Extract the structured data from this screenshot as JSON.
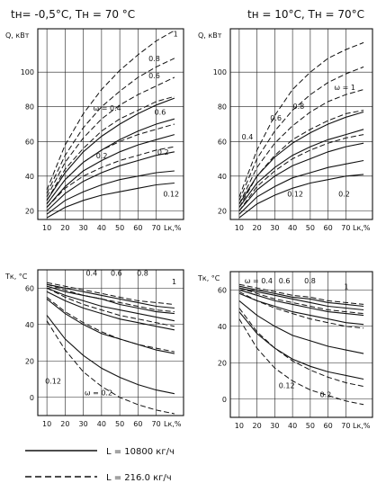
{
  "header": {
    "left": "tн= -0,5°C, Tн = 70 °C",
    "right": "tн = 10°C,    Tн = 70°C"
  },
  "legend": {
    "items": [
      {
        "label": "L = 10800 кг/ч",
        "style": "solid"
      },
      {
        "label": "L = 216.0 кг/ч",
        "style": "dashed"
      }
    ]
  },
  "chart_data": [
    {
      "type": "line",
      "ylabel": "Q, кВт",
      "xlabel": "Lк,%",
      "xticks": [
        10,
        20,
        30,
        40,
        50,
        60,
        70
      ],
      "xtick_labels": [
        "10",
        "20",
        "30",
        "40",
        "50",
        "60",
        "70"
      ],
      "yticks": [
        20,
        40,
        60,
        80,
        100
      ],
      "ytick_labels": [
        "20",
        "40",
        "60",
        "80",
        "100"
      ],
      "xlim": [
        5,
        85
      ],
      "ylim": [
        15,
        125
      ],
      "annotations": [
        "1",
        "0.8",
        "0.6",
        "ω = 0.4",
        "0.6",
        "0.2",
        "0.2",
        "0.12"
      ],
      "series": [
        {
          "style": "dashed",
          "x": [
            10,
            20,
            30,
            40,
            50,
            60,
            70,
            80
          ],
          "y": [
            32,
            58,
            76,
            90,
            101,
            110,
            118,
            124
          ]
        },
        {
          "style": "dashed",
          "x": [
            10,
            20,
            30,
            40,
            50,
            60,
            70,
            80
          ],
          "y": [
            30,
            52,
            68,
            80,
            89,
            97,
            103,
            108
          ]
        },
        {
          "style": "dashed",
          "x": [
            10,
            20,
            30,
            40,
            50,
            60,
            70,
            80
          ],
          "y": [
            28,
            48,
            62,
            73,
            81,
            87,
            92,
            97
          ]
        },
        {
          "style": "dashed",
          "x": [
            10,
            20,
            30,
            40,
            50,
            60,
            70,
            80
          ],
          "y": [
            26,
            44,
            56,
            66,
            73,
            78,
            83,
            86
          ]
        },
        {
          "style": "dashed",
          "x": [
            10,
            20,
            30,
            40,
            50,
            60,
            70,
            80
          ],
          "y": [
            24,
            38,
            48,
            55,
            60,
            64,
            67,
            70
          ]
        },
        {
          "style": "dashed",
          "x": [
            10,
            20,
            30,
            40,
            50,
            60,
            70,
            80
          ],
          "y": [
            22,
            33,
            40,
            45,
            49,
            52,
            55,
            57
          ]
        },
        {
          "style": "solid",
          "x": [
            10,
            20,
            30,
            40,
            50,
            60,
            70,
            80
          ],
          "y": [
            26,
            42,
            54,
            63,
            70,
            76,
            81,
            85
          ]
        },
        {
          "style": "solid",
          "x": [
            10,
            20,
            30,
            40,
            50,
            60,
            70,
            80
          ],
          "y": [
            24,
            38,
            48,
            55,
            61,
            66,
            70,
            73
          ]
        },
        {
          "style": "solid",
          "x": [
            10,
            20,
            30,
            40,
            50,
            60,
            70,
            80
          ],
          "y": [
            22,
            34,
            43,
            49,
            54,
            58,
            61,
            64
          ]
        },
        {
          "style": "solid",
          "x": [
            10,
            20,
            30,
            40,
            50,
            60,
            70,
            80
          ],
          "y": [
            20,
            30,
            37,
            42,
            46,
            49,
            52,
            54
          ]
        },
        {
          "style": "solid",
          "x": [
            10,
            20,
            30,
            40,
            50,
            60,
            70,
            80
          ],
          "y": [
            18,
            26,
            31,
            35,
            38,
            40,
            42,
            43
          ]
        },
        {
          "style": "solid",
          "x": [
            10,
            20,
            30,
            40,
            50,
            60,
            70,
            80
          ],
          "y": [
            16,
            22,
            26,
            29,
            31,
            33,
            35,
            36
          ]
        }
      ]
    },
    {
      "type": "line",
      "ylabel": "Q, кВт",
      "xlabel": "Lк,%",
      "xticks": [
        10,
        20,
        30,
        40,
        50,
        60,
        70
      ],
      "xtick_labels": [
        "10",
        "20",
        "30",
        "40",
        "50",
        "60",
        "70"
      ],
      "yticks": [
        20,
        40,
        60,
        80,
        100
      ],
      "ytick_labels": [
        "20",
        "40",
        "60",
        "80",
        "100"
      ],
      "xlim": [
        5,
        85
      ],
      "ylim": [
        15,
        125
      ],
      "annotations": [
        "ω = 1",
        "0.8",
        "0.6",
        "0.4",
        "0.12",
        "0.2"
      ],
      "series": [
        {
          "style": "dashed",
          "x": [
            10,
            20,
            30,
            40,
            50,
            60,
            70,
            80
          ],
          "y": [
            28,
            55,
            75,
            90,
            100,
            108,
            113,
            117
          ]
        },
        {
          "style": "dashed",
          "x": [
            10,
            20,
            30,
            40,
            50,
            60,
            70,
            80
          ],
          "y": [
            26,
            50,
            66,
            78,
            87,
            94,
            99,
            103
          ]
        },
        {
          "style": "dashed",
          "x": [
            10,
            20,
            30,
            40,
            50,
            60,
            70,
            80
          ],
          "y": [
            24,
            45,
            59,
            69,
            77,
            83,
            87,
            90
          ]
        },
        {
          "style": "dashed",
          "x": [
            10,
            20,
            30,
            40,
            50,
            60,
            70,
            80
          ],
          "y": [
            22,
            40,
            52,
            61,
            67,
            72,
            76,
            78
          ]
        },
        {
          "style": "dashed",
          "x": [
            10,
            20,
            30,
            40,
            50,
            60,
            70,
            80
          ],
          "y": [
            20,
            34,
            43,
            50,
            55,
            59,
            62,
            64
          ]
        },
        {
          "style": "solid",
          "x": [
            10,
            20,
            30,
            40,
            50,
            60,
            70,
            80
          ],
          "y": [
            24,
            40,
            51,
            59,
            65,
            70,
            74,
            77
          ]
        },
        {
          "style": "solid",
          "x": [
            10,
            20,
            30,
            40,
            50,
            60,
            70,
            80
          ],
          "y": [
            22,
            36,
            45,
            52,
            57,
            61,
            64,
            67
          ]
        },
        {
          "style": "solid",
          "x": [
            10,
            20,
            30,
            40,
            50,
            60,
            70,
            80
          ],
          "y": [
            20,
            32,
            40,
            46,
            50,
            54,
            57,
            59
          ]
        },
        {
          "style": "solid",
          "x": [
            10,
            20,
            30,
            40,
            50,
            60,
            70,
            80
          ],
          "y": [
            18,
            28,
            34,
            39,
            42,
            45,
            47,
            49
          ]
        },
        {
          "style": "solid",
          "x": [
            10,
            20,
            30,
            40,
            50,
            60,
            70,
            80
          ],
          "y": [
            16,
            24,
            29,
            33,
            36,
            38,
            40,
            41
          ]
        }
      ]
    },
    {
      "type": "line",
      "ylabel": "Tк, °C",
      "xlabel": "Lк,%",
      "xticks": [
        10,
        20,
        30,
        40,
        50,
        60,
        70
      ],
      "xtick_labels": [
        "10",
        "20",
        "30",
        "40",
        "50",
        "60",
        "70"
      ],
      "yticks": [
        0,
        20,
        40,
        60
      ],
      "ytick_labels": [
        "0",
        "20",
        "40",
        "60"
      ],
      "xlim": [
        5,
        85
      ],
      "ylim": [
        -10,
        70
      ],
      "annotations": [
        "0.4",
        "0.6",
        "0.8",
        "1",
        "0.12",
        "ω = 0.2"
      ],
      "series": [
        {
          "style": "solid",
          "x": [
            10,
            20,
            30,
            40,
            50,
            60,
            70,
            80
          ],
          "y": [
            62,
            60,
            58,
            56,
            54,
            52,
            50,
            49
          ]
        },
        {
          "style": "solid",
          "x": [
            10,
            20,
            30,
            40,
            50,
            60,
            70,
            80
          ],
          "y": [
            61,
            58,
            56,
            54,
            51,
            49,
            47,
            46
          ]
        },
        {
          "style": "solid",
          "x": [
            10,
            20,
            30,
            40,
            50,
            60,
            70,
            80
          ],
          "y": [
            60,
            56,
            53,
            50,
            48,
            46,
            44,
            42
          ]
        },
        {
          "style": "solid",
          "x": [
            10,
            20,
            30,
            40,
            50,
            60,
            70,
            80
          ],
          "y": [
            58,
            53,
            49,
            46,
            43,
            41,
            39,
            37
          ]
        },
        {
          "style": "solid",
          "x": [
            10,
            20,
            30,
            40,
            50,
            60,
            70,
            80
          ],
          "y": [
            54,
            46,
            40,
            35,
            32,
            29,
            26,
            24
          ]
        },
        {
          "style": "solid",
          "x": [
            10,
            20,
            30,
            40,
            50,
            60,
            70,
            80
          ],
          "y": [
            45,
            32,
            23,
            16,
            11,
            7,
            4,
            2
          ]
        },
        {
          "style": "dashed",
          "x": [
            10,
            20,
            30,
            40,
            50,
            60,
            70,
            80
          ],
          "y": [
            63,
            61,
            59,
            57,
            55,
            53,
            52,
            51
          ]
        },
        {
          "style": "dashed",
          "x": [
            10,
            20,
            30,
            40,
            50,
            60,
            70,
            80
          ],
          "y": [
            62,
            59,
            56,
            54,
            52,
            50,
            48,
            47
          ]
        },
        {
          "style": "dashed",
          "x": [
            10,
            20,
            30,
            40,
            50,
            60,
            70,
            80
          ],
          "y": [
            60,
            55,
            51,
            48,
            45,
            43,
            41,
            39
          ]
        },
        {
          "style": "dashed",
          "x": [
            10,
            20,
            30,
            40,
            50,
            60,
            70,
            80
          ],
          "y": [
            55,
            47,
            41,
            36,
            32,
            29,
            27,
            25
          ]
        },
        {
          "style": "dashed",
          "x": [
            10,
            20,
            30,
            40,
            50,
            60,
            70,
            80
          ],
          "y": [
            42,
            26,
            14,
            6,
            0,
            -4,
            -7,
            -9
          ]
        }
      ]
    },
    {
      "type": "line",
      "ylabel": "Tк, °C",
      "xlabel": "Lк,%",
      "xticks": [
        10,
        20,
        30,
        40,
        50,
        60,
        70
      ],
      "xtick_labels": [
        "10",
        "20",
        "30",
        "40",
        "50",
        "60",
        "70"
      ],
      "yticks": [
        0,
        20,
        40,
        60
      ],
      "ytick_labels": [
        "0",
        "20",
        "40",
        "60"
      ],
      "xlim": [
        5,
        85
      ],
      "ylim": [
        -10,
        70
      ],
      "annotations": [
        "ω = 0.4",
        "0.6",
        "0.8",
        "1",
        "0.12",
        "0.2"
      ],
      "series": [
        {
          "style": "solid",
          "x": [
            10,
            20,
            30,
            40,
            50,
            60,
            70,
            80
          ],
          "y": [
            62,
            60,
            58,
            56,
            55,
            53,
            52,
            51
          ]
        },
        {
          "style": "solid",
          "x": [
            10,
            20,
            30,
            40,
            50,
            60,
            70,
            80
          ],
          "y": [
            61,
            59,
            57,
            55,
            53,
            51,
            50,
            49
          ]
        },
        {
          "style": "solid",
          "x": [
            10,
            20,
            30,
            40,
            50,
            60,
            70,
            80
          ],
          "y": [
            60,
            57,
            54,
            52,
            50,
            48,
            47,
            46
          ]
        },
        {
          "style": "solid",
          "x": [
            10,
            20,
            30,
            40,
            50,
            60,
            70,
            80
          ],
          "y": [
            58,
            54,
            51,
            48,
            46,
            44,
            42,
            41
          ]
        },
        {
          "style": "solid",
          "x": [
            10,
            20,
            30,
            40,
            50,
            60,
            70,
            80
          ],
          "y": [
            54,
            46,
            40,
            35,
            32,
            29,
            27,
            25
          ]
        },
        {
          "style": "solid",
          "x": [
            10,
            20,
            30,
            40,
            50,
            60,
            70,
            80
          ],
          "y": [
            48,
            36,
            28,
            22,
            18,
            15,
            13,
            11
          ]
        },
        {
          "style": "dashed",
          "x": [
            10,
            20,
            30,
            40,
            50,
            60,
            70,
            80
          ],
          "y": [
            63,
            61,
            59,
            57,
            56,
            54,
            53,
            52
          ]
        },
        {
          "style": "dashed",
          "x": [
            10,
            20,
            30,
            40,
            50,
            60,
            70,
            80
          ],
          "y": [
            61,
            58,
            55,
            53,
            51,
            49,
            48,
            47
          ]
        },
        {
          "style": "dashed",
          "x": [
            10,
            20,
            30,
            40,
            50,
            60,
            70,
            80
          ],
          "y": [
            59,
            54,
            50,
            47,
            44,
            42,
            40,
            39
          ]
        },
        {
          "style": "dashed",
          "x": [
            10,
            20,
            30,
            40,
            50,
            60,
            70,
            80
          ],
          "y": [
            50,
            37,
            28,
            21,
            16,
            12,
            9,
            7
          ]
        },
        {
          "style": "dashed",
          "x": [
            10,
            20,
            30,
            40,
            50,
            60,
            70,
            80
          ],
          "y": [
            44,
            28,
            17,
            10,
            5,
            2,
            -1,
            -3
          ]
        }
      ]
    }
  ]
}
